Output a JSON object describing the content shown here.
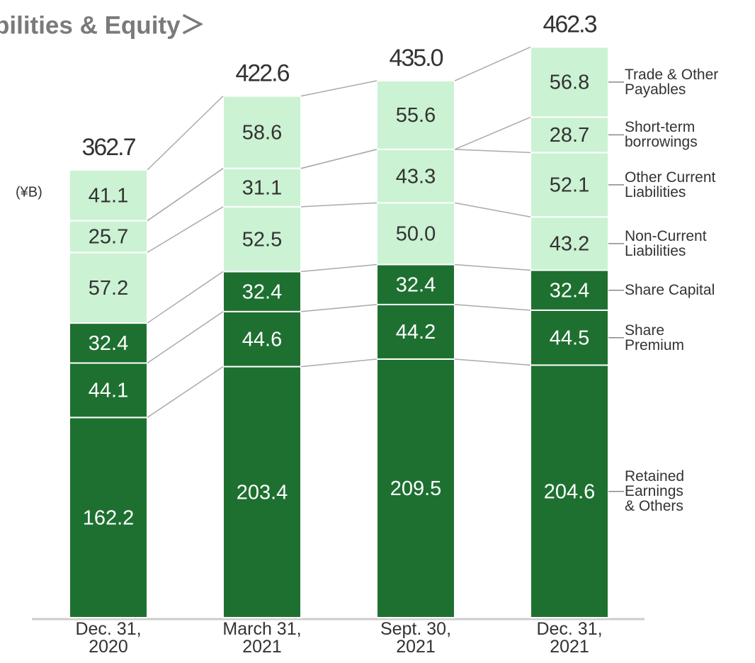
{
  "chart_data": {
    "type": "stacked-bar",
    "title": "bilities & Equity＞",
    "unit": "(¥B)",
    "categories": [
      "Dec. 31,\n2020",
      "March 31,\n2021",
      "Sept. 30,\n2021",
      "Dec. 31,\n2021"
    ],
    "series": [
      {
        "name": "Retained\nEarnings\n& Others",
        "color": "#1e7030",
        "values": [
          162.2,
          203.4,
          209.5,
          204.6
        ],
        "value_labels": [
          "162.2",
          "203.4",
          "209.5",
          "204.6"
        ]
      },
      {
        "name": "Share\nPremium",
        "color": "#1e7030",
        "values": [
          44.1,
          44.6,
          44.2,
          44.5
        ],
        "value_labels": [
          "44.1",
          "44.6",
          "44.2",
          "44.5"
        ]
      },
      {
        "name": "Share Capital",
        "color": "#1e7030",
        "values": [
          32.4,
          32.4,
          32.4,
          32.4
        ],
        "value_labels": [
          "32.4",
          "32.4",
          "32.4",
          "32.4"
        ]
      },
      {
        "name": "Non-Current\nLiabilities",
        "color": "#cbf2d3",
        "values": [
          57.2,
          52.5,
          50.0,
          43.2
        ],
        "value_labels": [
          "57.2",
          "52.5",
          "50.0",
          "43.2"
        ]
      },
      {
        "name": "Other Current\nLiabilities",
        "color": "#cbf2d3",
        "values": [
          25.7,
          31.1,
          43.3,
          52.1
        ],
        "value_labels": [
          "25.7",
          "31.1",
          "43.3",
          "52.1"
        ]
      },
      {
        "name": "Short-term\nborrowings",
        "color": "#cbf2d3",
        "values": [
          null,
          null,
          null,
          28.7
        ],
        "value_labels": [
          null,
          null,
          null,
          "28.7"
        ]
      },
      {
        "name": "Trade & Other\nPayables",
        "color": "#cbf2d3",
        "values": [
          41.1,
          58.6,
          55.6,
          56.8
        ],
        "value_labels": [
          "41.1",
          "58.6",
          "55.6",
          "56.8"
        ]
      }
    ],
    "totals": {
      "values": [
        362.7,
        422.6,
        435.0,
        462.3
      ],
      "value_labels": [
        "362.7",
        "422.6",
        "435.0",
        "462.3"
      ]
    }
  }
}
